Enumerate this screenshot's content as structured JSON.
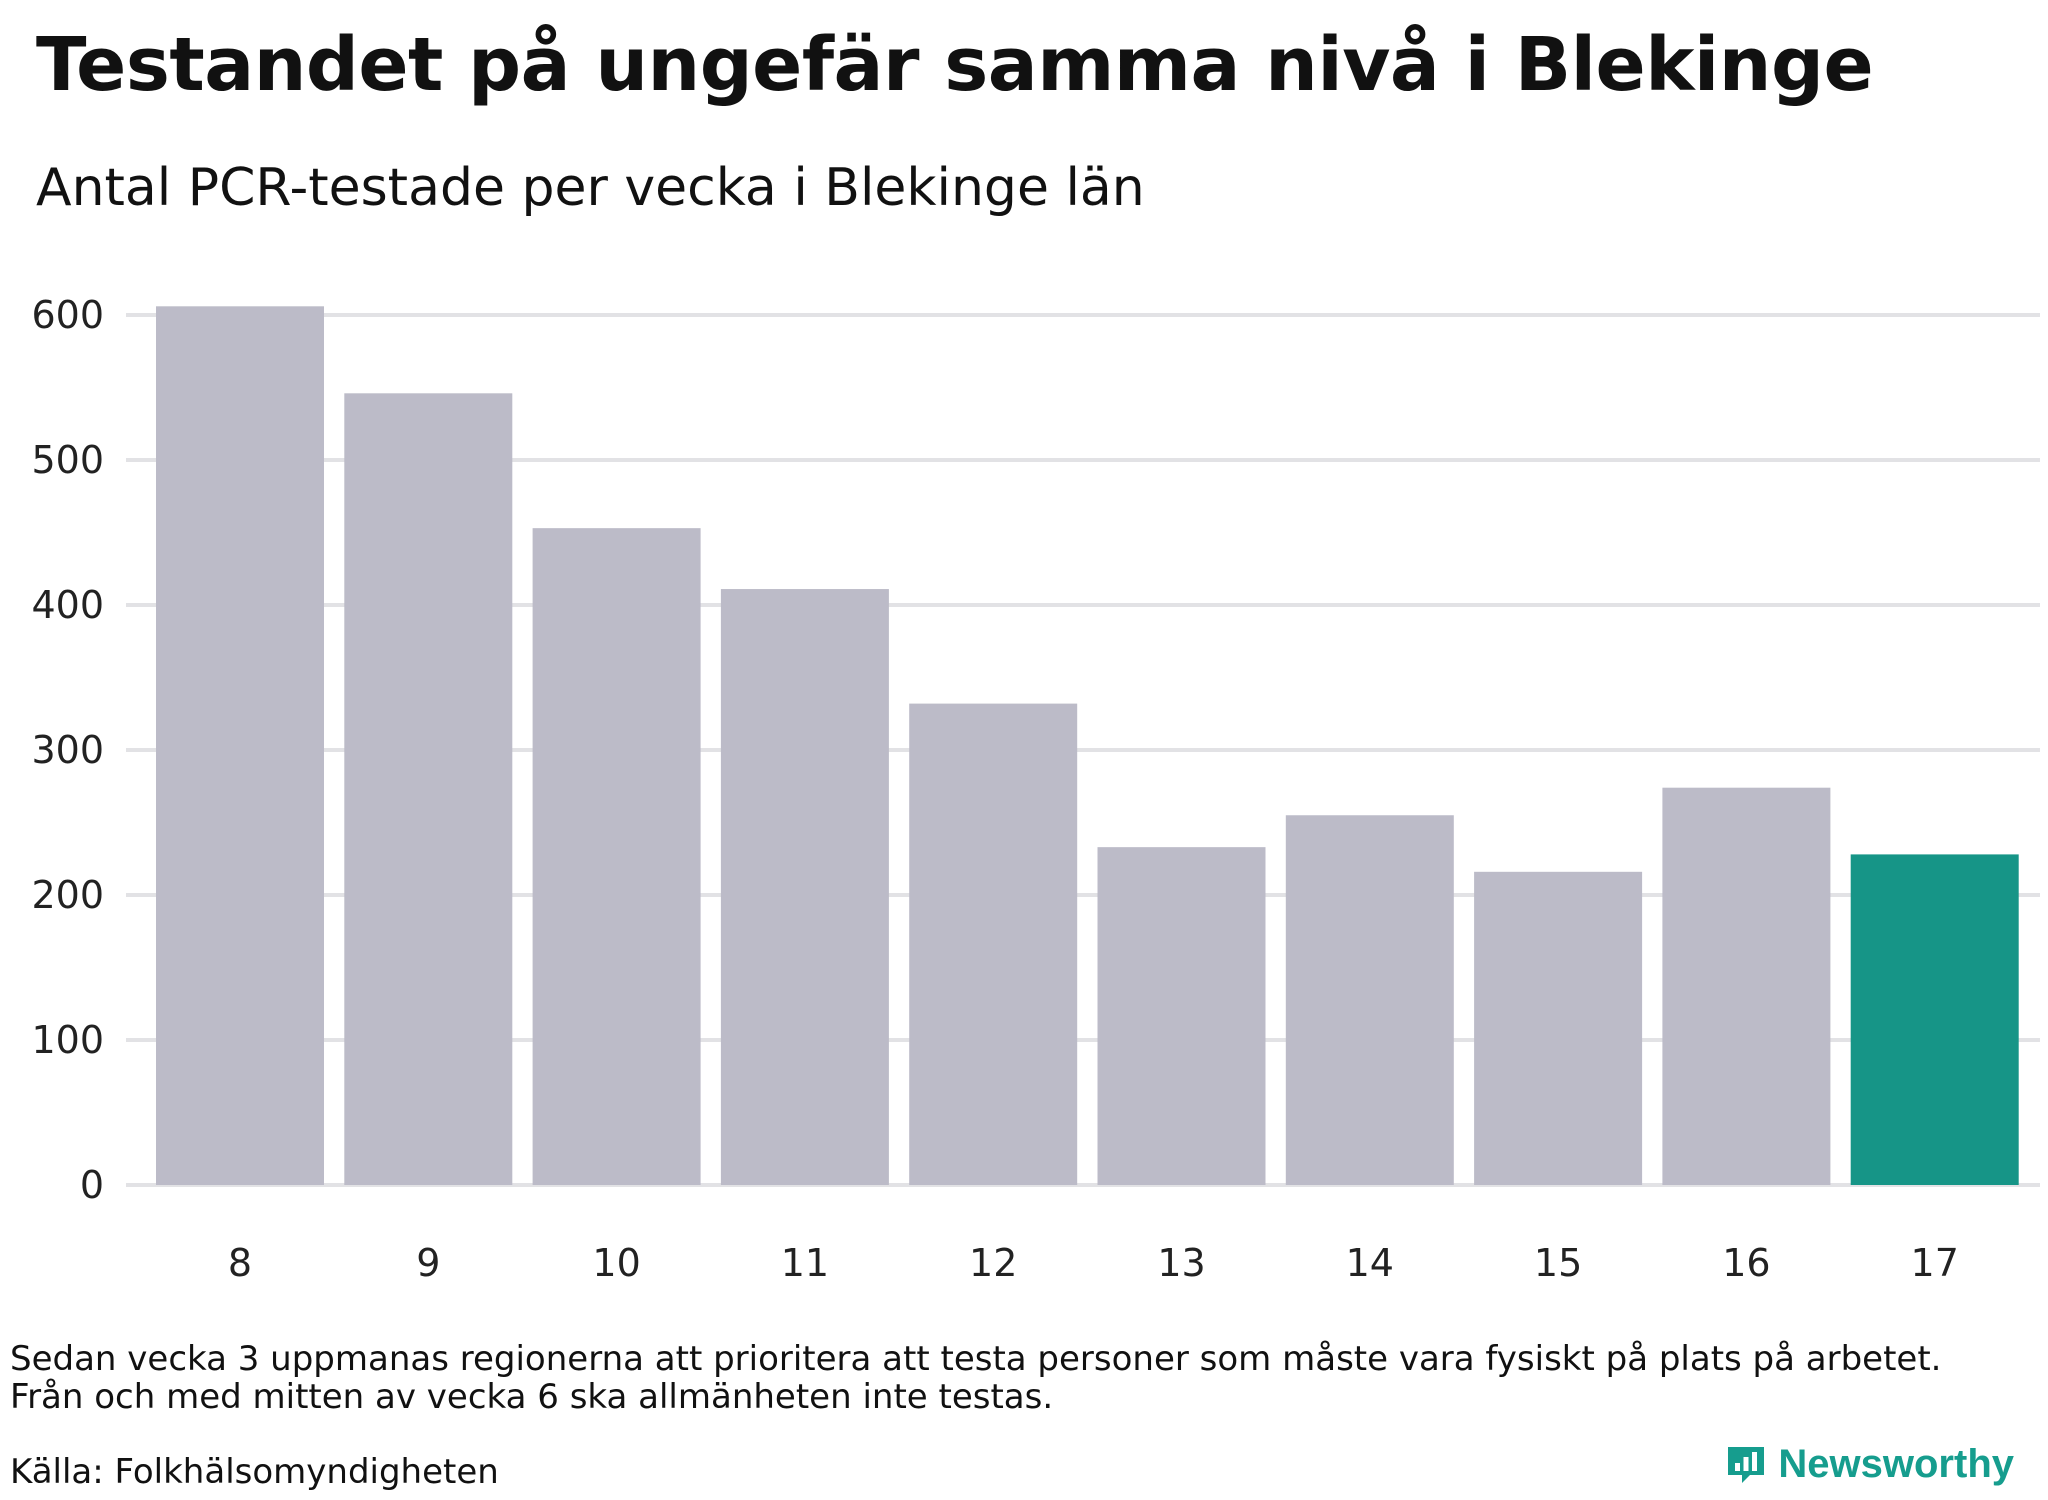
{
  "title": "Testandet på ungefär samma nivå i Blekinge",
  "subtitle": "Antal PCR-testade per vecka i Blekinge län",
  "notes": [
    "Sedan vecka 3 uppmanas regionerna att prioritera att testa personer som måste vara fysiskt på plats på arbetet.",
    "Från och med mitten av vecka 6 ska allmänheten inte testas."
  ],
  "source": "Källa: Folkhälsomyndigheten",
  "brand": {
    "name": "Newsworthy",
    "color": "#169d8e"
  },
  "colors": {
    "bar_default": "#bcbbc8",
    "bar_highlight": "#169587",
    "gridline": "#e2e2e5"
  },
  "chart_data": {
    "type": "bar",
    "title": "Testandet på ungefär samma nivå i Blekinge",
    "subtitle": "Antal PCR-testade per vecka i Blekinge län",
    "xlabel": "",
    "ylabel": "",
    "categories": [
      "8",
      "9",
      "10",
      "11",
      "12",
      "13",
      "14",
      "15",
      "16",
      "17"
    ],
    "values": [
      606,
      546,
      453,
      411,
      332,
      233,
      255,
      216,
      274,
      228
    ],
    "highlight_index": 9,
    "ylim": [
      0,
      600
    ],
    "yticks": [
      0,
      100,
      200,
      300,
      400,
      500,
      600
    ],
    "grid": true,
    "legend": "none"
  }
}
